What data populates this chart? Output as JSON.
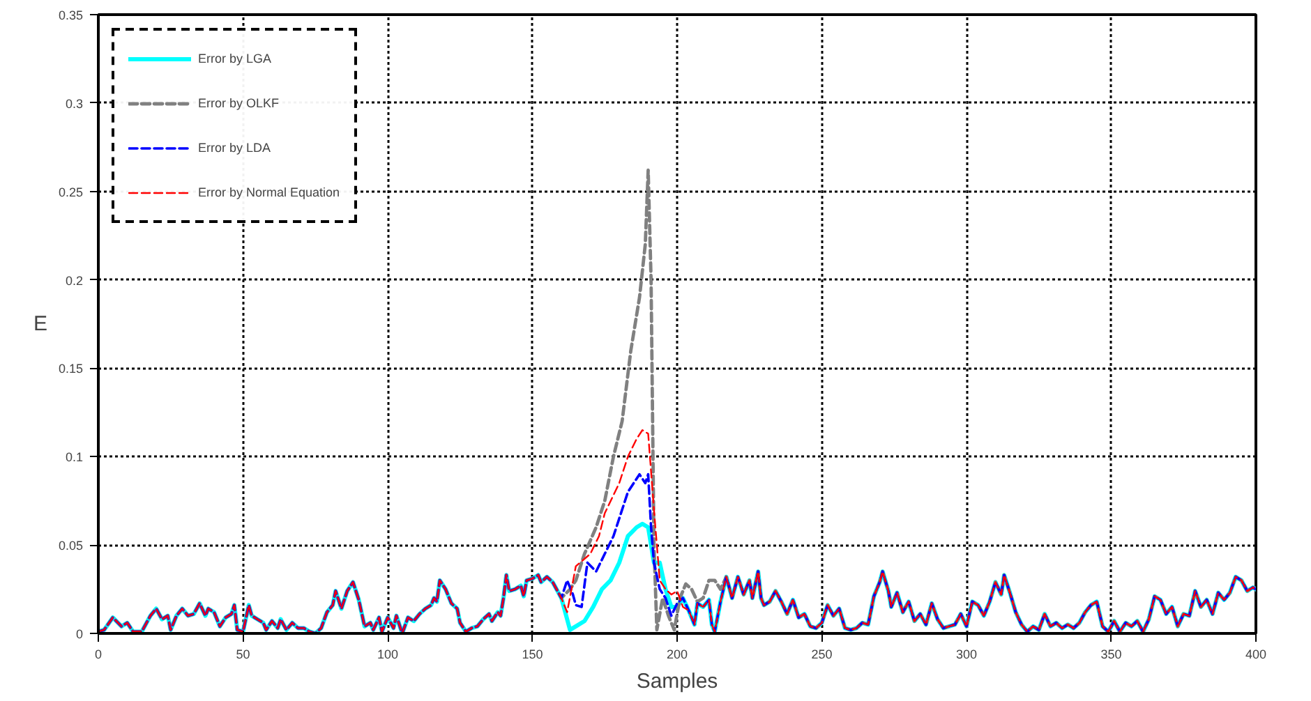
{
  "chart_data": {
    "type": "line",
    "xlabel": "Samples",
    "ylabel": "E",
    "xlim": [
      0,
      400
    ],
    "ylim": [
      0,
      0.35
    ],
    "xticks": [
      0,
      50,
      100,
      150,
      200,
      250,
      300,
      350,
      400
    ],
    "yticks": [
      0,
      0.05,
      0.1,
      0.15,
      0.2,
      0.25,
      0.3,
      0.35
    ],
    "grid": true,
    "legend": "top left",
    "series": [
      {
        "name": "Error by LGA",
        "color": "#00ffff",
        "line_style": "solid",
        "x": [
          0,
          2,
          5,
          8,
          10,
          12,
          15,
          18,
          20,
          22,
          24,
          25,
          27,
          29,
          31,
          33,
          35,
          37,
          38,
          40,
          42,
          44,
          46,
          47,
          48,
          50,
          52,
          53,
          55,
          57,
          58,
          60,
          62,
          63,
          65,
          67,
          69,
          71,
          73,
          75,
          77,
          79,
          81,
          82,
          84,
          86,
          88,
          90,
          92,
          94,
          95,
          97,
          98,
          100,
          102,
          103,
          105,
          107,
          109,
          111,
          113,
          115,
          116,
          117,
          118,
          120,
          122,
          124,
          125,
          127,
          129,
          131,
          133,
          135,
          136,
          138,
          139,
          140,
          141,
          142,
          144,
          146,
          147,
          148,
          150,
          152,
          153,
          155,
          157,
          159,
          160,
          162,
          163,
          165,
          168,
          171,
          174,
          177,
          180,
          183,
          186,
          188,
          190,
          192,
          194,
          196,
          198,
          200,
          202,
          204,
          206,
          207,
          209,
          211,
          212,
          213,
          215,
          217,
          219,
          221,
          223,
          225,
          226,
          228,
          229,
          230,
          232,
          234,
          236,
          238,
          240,
          242,
          244,
          246,
          248,
          250,
          252,
          254,
          256,
          258,
          260,
          262,
          264,
          266,
          268,
          270,
          271,
          273,
          274,
          276,
          278,
          280,
          282,
          284,
          286,
          288,
          290,
          292,
          294,
          296,
          298,
          300,
          302,
          304,
          306,
          308,
          310,
          312,
          313,
          315,
          317,
          319,
          321,
          323,
          325,
          327,
          329,
          331,
          333,
          335,
          337,
          339,
          341,
          343,
          345,
          347,
          349,
          351,
          353,
          355,
          357,
          359,
          361,
          363,
          365,
          367,
          369,
          371,
          373,
          375,
          377,
          379,
          381,
          383,
          385,
          387,
          389,
          391,
          393,
          395,
          397,
          399,
          400
        ],
        "values": [
          0.001,
          0.002,
          0.009,
          0.004,
          0.006,
          0.001,
          0.001,
          0.01,
          0.014,
          0.008,
          0.01,
          0.002,
          0.01,
          0.014,
          0.01,
          0.011,
          0.017,
          0.01,
          0.014,
          0.012,
          0.004,
          0.009,
          0.011,
          0.016,
          0.002,
          0.001,
          0.016,
          0.01,
          0.008,
          0.006,
          0.002,
          0.007,
          0.003,
          0.008,
          0.002,
          0.006,
          0.003,
          0.003,
          0.001,
          0.0,
          0.003,
          0.012,
          0.016,
          0.024,
          0.014,
          0.024,
          0.029,
          0.019,
          0.004,
          0.006,
          0.002,
          0.009,
          0.001,
          0.009,
          0.003,
          0.01,
          0.0,
          0.009,
          0.007,
          0.011,
          0.014,
          0.016,
          0.02,
          0.018,
          0.03,
          0.025,
          0.017,
          0.014,
          0.006,
          0.001,
          0.003,
          0.004,
          0.008,
          0.011,
          0.007,
          0.012,
          0.01,
          0.02,
          0.033,
          0.024,
          0.025,
          0.027,
          0.021,
          0.03,
          0.031,
          0.033,
          0.029,
          0.032,
          0.029,
          0.023,
          0.02,
          0.008,
          0.002,
          0.004,
          0.007,
          0.015,
          0.025,
          0.03,
          0.04,
          0.055,
          0.06,
          0.062,
          0.06,
          0.04,
          0.04,
          0.025,
          0.015,
          0.015,
          0.02,
          0.013,
          0.005,
          0.017,
          0.015,
          0.019,
          0.005,
          0.001,
          0.018,
          0.032,
          0.02,
          0.032,
          0.022,
          0.03,
          0.02,
          0.035,
          0.02,
          0.016,
          0.018,
          0.024,
          0.018,
          0.011,
          0.019,
          0.009,
          0.011,
          0.004,
          0.003,
          0.006,
          0.016,
          0.01,
          0.014,
          0.003,
          0.002,
          0.003,
          0.006,
          0.005,
          0.021,
          0.029,
          0.035,
          0.024,
          0.015,
          0.023,
          0.012,
          0.018,
          0.007,
          0.011,
          0.005,
          0.017,
          0.008,
          0.003,
          0.004,
          0.005,
          0.011,
          0.004,
          0.018,
          0.016,
          0.01,
          0.018,
          0.029,
          0.022,
          0.033,
          0.023,
          0.012,
          0.005,
          0.001,
          0.004,
          0.002,
          0.011,
          0.004,
          0.006,
          0.003,
          0.005,
          0.003,
          0.006,
          0.012,
          0.016,
          0.018,
          0.004,
          0.001,
          0.007,
          0.001,
          0.006,
          0.004,
          0.007,
          0.001,
          0.008,
          0.021,
          0.019,
          0.011,
          0.015,
          0.004,
          0.011,
          0.01,
          0.024,
          0.015,
          0.019,
          0.011,
          0.023,
          0.019,
          0.023,
          0.032,
          0.03,
          0.024,
          0.026,
          0.025
        ]
      },
      {
        "name": "Error by OLKF",
        "color": "#808080",
        "line_style": "dashed",
        "x": [
          0,
          2,
          5,
          8,
          10,
          12,
          15,
          18,
          20,
          22,
          24,
          25,
          27,
          29,
          31,
          33,
          35,
          37,
          38,
          40,
          42,
          44,
          46,
          47,
          48,
          50,
          52,
          53,
          55,
          57,
          58,
          60,
          62,
          63,
          65,
          67,
          69,
          71,
          73,
          75,
          77,
          79,
          81,
          82,
          84,
          86,
          88,
          90,
          92,
          94,
          95,
          97,
          98,
          100,
          102,
          103,
          105,
          107,
          109,
          111,
          113,
          115,
          116,
          117,
          118,
          120,
          122,
          124,
          125,
          127,
          129,
          131,
          133,
          135,
          136,
          138,
          139,
          140,
          141,
          142,
          144,
          146,
          147,
          148,
          150,
          152,
          153,
          155,
          157,
          159,
          160,
          163,
          165,
          168,
          172,
          175,
          178,
          181,
          184,
          187,
          189,
          190,
          191,
          192,
          193,
          195,
          197,
          199,
          201,
          203,
          205,
          207,
          209,
          211,
          213,
          215,
          217,
          219,
          221,
          223,
          225,
          226,
          228,
          229,
          230,
          232,
          234,
          236,
          238,
          240,
          242,
          244,
          246,
          248,
          250,
          252,
          254,
          256,
          258,
          260,
          262,
          264,
          266,
          268,
          270,
          271,
          273,
          274,
          276,
          278,
          280,
          282,
          284,
          286,
          288,
          290,
          292,
          294,
          296,
          298,
          300,
          302,
          304,
          306,
          308,
          310,
          312,
          313,
          315,
          317,
          319,
          321,
          323,
          325,
          327,
          329,
          331,
          333,
          335,
          337,
          339,
          341,
          343,
          345,
          347,
          349,
          351,
          353,
          355,
          357,
          359,
          361,
          363,
          365,
          367,
          369,
          371,
          373,
          375,
          377,
          379,
          381,
          383,
          385,
          387,
          389,
          391,
          393,
          395,
          397,
          399,
          400
        ],
        "values": [
          0.001,
          0.002,
          0.009,
          0.004,
          0.006,
          0.001,
          0.001,
          0.01,
          0.014,
          0.008,
          0.01,
          0.002,
          0.01,
          0.014,
          0.01,
          0.011,
          0.017,
          0.01,
          0.014,
          0.012,
          0.004,
          0.009,
          0.011,
          0.016,
          0.002,
          0.001,
          0.016,
          0.01,
          0.008,
          0.006,
          0.002,
          0.007,
          0.003,
          0.008,
          0.002,
          0.006,
          0.003,
          0.003,
          0.001,
          0.0,
          0.003,
          0.012,
          0.016,
          0.024,
          0.014,
          0.024,
          0.029,
          0.019,
          0.004,
          0.006,
          0.002,
          0.009,
          0.001,
          0.009,
          0.003,
          0.01,
          0.0,
          0.009,
          0.007,
          0.011,
          0.014,
          0.016,
          0.02,
          0.018,
          0.03,
          0.025,
          0.017,
          0.014,
          0.006,
          0.001,
          0.003,
          0.004,
          0.008,
          0.011,
          0.007,
          0.012,
          0.01,
          0.02,
          0.033,
          0.024,
          0.025,
          0.027,
          0.021,
          0.03,
          0.031,
          0.033,
          0.029,
          0.032,
          0.029,
          0.023,
          0.02,
          0.025,
          0.03,
          0.045,
          0.06,
          0.075,
          0.1,
          0.12,
          0.16,
          0.19,
          0.22,
          0.262,
          0.2,
          0.05,
          0.002,
          0.02,
          0.01,
          0.002,
          0.02,
          0.028,
          0.025,
          0.018,
          0.02,
          0.03,
          0.03,
          0.025,
          0.032,
          0.02,
          0.032,
          0.022,
          0.03,
          0.02,
          0.035,
          0.02,
          0.016,
          0.018,
          0.024,
          0.018,
          0.011,
          0.019,
          0.009,
          0.011,
          0.004,
          0.003,
          0.006,
          0.016,
          0.01,
          0.014,
          0.003,
          0.002,
          0.003,
          0.006,
          0.005,
          0.021,
          0.029,
          0.035,
          0.024,
          0.015,
          0.023,
          0.012,
          0.018,
          0.007,
          0.011,
          0.005,
          0.017,
          0.008,
          0.003,
          0.004,
          0.005,
          0.011,
          0.004,
          0.018,
          0.016,
          0.01,
          0.018,
          0.029,
          0.022,
          0.033,
          0.023,
          0.012,
          0.005,
          0.001,
          0.004,
          0.002,
          0.011,
          0.004,
          0.006,
          0.003,
          0.005,
          0.003,
          0.006,
          0.012,
          0.016,
          0.018,
          0.004,
          0.001,
          0.007,
          0.001,
          0.006,
          0.004,
          0.007,
          0.001,
          0.008,
          0.021,
          0.019,
          0.011,
          0.015,
          0.004,
          0.011,
          0.01,
          0.024,
          0.015,
          0.019,
          0.011,
          0.023,
          0.019,
          0.023,
          0.032,
          0.03,
          0.024,
          0.026,
          0.025
        ]
      },
      {
        "name": "Error by LDA",
        "color": "#0000ff",
        "line_style": "dashed",
        "x": [
          0,
          2,
          5,
          8,
          10,
          12,
          15,
          18,
          20,
          22,
          24,
          25,
          27,
          29,
          31,
          33,
          35,
          37,
          38,
          40,
          42,
          44,
          46,
          47,
          48,
          50,
          52,
          53,
          55,
          57,
          58,
          60,
          62,
          63,
          65,
          67,
          69,
          71,
          73,
          75,
          77,
          79,
          81,
          82,
          84,
          86,
          88,
          90,
          92,
          94,
          95,
          97,
          98,
          100,
          102,
          103,
          105,
          107,
          109,
          111,
          113,
          115,
          116,
          117,
          118,
          120,
          122,
          124,
          125,
          127,
          129,
          131,
          133,
          135,
          136,
          138,
          139,
          140,
          141,
          142,
          144,
          146,
          147,
          148,
          150,
          152,
          153,
          155,
          157,
          159,
          160,
          162,
          164,
          165,
          167,
          169,
          172,
          175,
          178,
          180,
          183,
          185,
          187,
          189,
          190,
          191,
          192,
          194,
          196,
          198,
          200,
          202,
          204,
          206,
          207,
          209,
          211,
          212,
          213,
          215,
          217,
          219,
          221,
          223,
          225,
          226,
          228,
          229,
          230,
          232,
          234,
          236,
          238,
          240,
          242,
          244,
          246,
          248,
          250,
          252,
          254,
          256,
          258,
          260,
          262,
          264,
          266,
          268,
          270,
          271,
          273,
          274,
          276,
          278,
          280,
          282,
          284,
          286,
          288,
          290,
          292,
          294,
          296,
          298,
          300,
          302,
          304,
          306,
          308,
          310,
          312,
          313,
          315,
          317,
          319,
          321,
          323,
          325,
          327,
          329,
          331,
          333,
          335,
          337,
          339,
          341,
          343,
          345,
          347,
          349,
          351,
          353,
          355,
          357,
          359,
          361,
          363,
          365,
          367,
          369,
          371,
          373,
          375,
          377,
          379,
          381,
          383,
          385,
          387,
          389,
          391,
          393,
          395,
          397,
          399,
          400
        ],
        "values": [
          0.001,
          0.002,
          0.009,
          0.004,
          0.006,
          0.001,
          0.001,
          0.01,
          0.014,
          0.008,
          0.01,
          0.002,
          0.01,
          0.014,
          0.01,
          0.011,
          0.017,
          0.01,
          0.014,
          0.012,
          0.004,
          0.009,
          0.011,
          0.016,
          0.002,
          0.001,
          0.016,
          0.01,
          0.008,
          0.006,
          0.002,
          0.007,
          0.003,
          0.008,
          0.002,
          0.006,
          0.003,
          0.003,
          0.001,
          0.0,
          0.003,
          0.012,
          0.016,
          0.024,
          0.014,
          0.024,
          0.029,
          0.019,
          0.004,
          0.006,
          0.002,
          0.009,
          0.001,
          0.009,
          0.003,
          0.01,
          0.0,
          0.009,
          0.007,
          0.011,
          0.014,
          0.016,
          0.02,
          0.018,
          0.03,
          0.025,
          0.017,
          0.014,
          0.006,
          0.001,
          0.003,
          0.004,
          0.008,
          0.011,
          0.007,
          0.012,
          0.01,
          0.02,
          0.033,
          0.024,
          0.025,
          0.027,
          0.021,
          0.03,
          0.031,
          0.033,
          0.029,
          0.032,
          0.029,
          0.023,
          0.02,
          0.03,
          0.022,
          0.016,
          0.015,
          0.04,
          0.035,
          0.045,
          0.055,
          0.065,
          0.08,
          0.085,
          0.09,
          0.085,
          0.09,
          0.06,
          0.04,
          0.025,
          0.02,
          0.01,
          0.017,
          0.02,
          0.013,
          0.005,
          0.017,
          0.015,
          0.019,
          0.005,
          0.001,
          0.018,
          0.032,
          0.02,
          0.032,
          0.022,
          0.03,
          0.02,
          0.035,
          0.02,
          0.016,
          0.018,
          0.024,
          0.018,
          0.011,
          0.019,
          0.009,
          0.011,
          0.004,
          0.003,
          0.006,
          0.016,
          0.01,
          0.014,
          0.003,
          0.002,
          0.003,
          0.006,
          0.005,
          0.021,
          0.029,
          0.035,
          0.024,
          0.015,
          0.023,
          0.012,
          0.018,
          0.007,
          0.011,
          0.005,
          0.017,
          0.008,
          0.003,
          0.004,
          0.005,
          0.011,
          0.004,
          0.018,
          0.016,
          0.01,
          0.018,
          0.029,
          0.022,
          0.033,
          0.023,
          0.012,
          0.005,
          0.001,
          0.004,
          0.002,
          0.011,
          0.004,
          0.006,
          0.003,
          0.005,
          0.003,
          0.006,
          0.012,
          0.016,
          0.018,
          0.004,
          0.001,
          0.007,
          0.001,
          0.006,
          0.004,
          0.007,
          0.001,
          0.008,
          0.021,
          0.019,
          0.011,
          0.015,
          0.004,
          0.011,
          0.01,
          0.024,
          0.015,
          0.019,
          0.011,
          0.023,
          0.019,
          0.023,
          0.032,
          0.03,
          0.024,
          0.026,
          0.025
        ]
      },
      {
        "name": "Error by Normal Equation",
        "color": "#ff0000",
        "line_style": "dashed",
        "x": [
          0,
          2,
          5,
          8,
          10,
          12,
          15,
          18,
          20,
          22,
          24,
          25,
          27,
          29,
          31,
          33,
          35,
          37,
          38,
          40,
          42,
          44,
          46,
          47,
          48,
          50,
          52,
          53,
          55,
          57,
          58,
          60,
          62,
          63,
          65,
          67,
          69,
          71,
          73,
          75,
          77,
          79,
          81,
          82,
          84,
          86,
          88,
          90,
          92,
          94,
          95,
          97,
          98,
          100,
          102,
          103,
          105,
          107,
          109,
          111,
          113,
          115,
          116,
          117,
          118,
          120,
          122,
          124,
          125,
          127,
          129,
          131,
          133,
          135,
          136,
          138,
          139,
          140,
          141,
          142,
          144,
          146,
          147,
          148,
          150,
          152,
          153,
          155,
          157,
          159,
          160,
          162,
          165,
          170,
          173,
          175,
          180,
          183,
          186,
          188,
          190,
          192,
          194,
          196,
          198,
          200,
          202,
          204,
          206,
          207,
          209,
          211,
          212,
          213,
          215,
          217,
          219,
          221,
          223,
          225,
          226,
          228,
          229,
          230,
          232,
          234,
          236,
          238,
          240,
          242,
          244,
          246,
          248,
          250,
          252,
          254,
          256,
          258,
          260,
          262,
          264,
          266,
          268,
          270,
          271,
          273,
          274,
          276,
          278,
          280,
          282,
          284,
          286,
          288,
          290,
          292,
          294,
          296,
          298,
          300,
          302,
          304,
          306,
          308,
          310,
          312,
          313,
          315,
          317,
          319,
          321,
          323,
          325,
          327,
          329,
          331,
          333,
          335,
          337,
          339,
          341,
          343,
          345,
          347,
          349,
          351,
          353,
          355,
          357,
          359,
          361,
          363,
          365,
          367,
          369,
          371,
          373,
          375,
          377,
          379,
          381,
          383,
          385,
          387,
          389,
          391,
          393,
          395,
          397,
          399,
          400
        ],
        "values": [
          0.001,
          0.002,
          0.009,
          0.004,
          0.006,
          0.001,
          0.001,
          0.01,
          0.014,
          0.008,
          0.01,
          0.002,
          0.01,
          0.014,
          0.01,
          0.011,
          0.017,
          0.01,
          0.014,
          0.012,
          0.004,
          0.009,
          0.011,
          0.016,
          0.002,
          0.001,
          0.016,
          0.01,
          0.008,
          0.006,
          0.002,
          0.007,
          0.003,
          0.008,
          0.002,
          0.006,
          0.003,
          0.003,
          0.001,
          0.0,
          0.003,
          0.012,
          0.016,
          0.024,
          0.014,
          0.024,
          0.029,
          0.019,
          0.004,
          0.006,
          0.002,
          0.009,
          0.001,
          0.009,
          0.003,
          0.01,
          0.0,
          0.009,
          0.007,
          0.011,
          0.014,
          0.016,
          0.02,
          0.018,
          0.03,
          0.025,
          0.017,
          0.014,
          0.006,
          0.001,
          0.003,
          0.004,
          0.008,
          0.011,
          0.007,
          0.012,
          0.01,
          0.02,
          0.033,
          0.024,
          0.025,
          0.027,
          0.021,
          0.03,
          0.031,
          0.033,
          0.029,
          0.032,
          0.029,
          0.023,
          0.02,
          0.012,
          0.038,
          0.045,
          0.055,
          0.068,
          0.085,
          0.1,
          0.11,
          0.115,
          0.113,
          0.07,
          0.03,
          0.025,
          0.022,
          0.024,
          0.015,
          0.013,
          0.005,
          0.017,
          0.015,
          0.019,
          0.005,
          0.001,
          0.018,
          0.032,
          0.02,
          0.032,
          0.022,
          0.03,
          0.02,
          0.035,
          0.02,
          0.016,
          0.018,
          0.024,
          0.018,
          0.011,
          0.019,
          0.009,
          0.011,
          0.004,
          0.003,
          0.006,
          0.016,
          0.01,
          0.014,
          0.003,
          0.002,
          0.003,
          0.006,
          0.005,
          0.021,
          0.029,
          0.035,
          0.024,
          0.015,
          0.023,
          0.012,
          0.018,
          0.007,
          0.011,
          0.005,
          0.017,
          0.008,
          0.003,
          0.004,
          0.005,
          0.011,
          0.004,
          0.018,
          0.016,
          0.01,
          0.018,
          0.029,
          0.022,
          0.033,
          0.023,
          0.012,
          0.005,
          0.001,
          0.004,
          0.002,
          0.011,
          0.004,
          0.006,
          0.003,
          0.005,
          0.003,
          0.006,
          0.012,
          0.016,
          0.018,
          0.004,
          0.001,
          0.007,
          0.001,
          0.006,
          0.004,
          0.007,
          0.001,
          0.008,
          0.021,
          0.019,
          0.011,
          0.015,
          0.004,
          0.011,
          0.01,
          0.024,
          0.015,
          0.019,
          0.011,
          0.023,
          0.019,
          0.023,
          0.032,
          0.03,
          0.024,
          0.026,
          0.025
        ]
      }
    ]
  }
}
